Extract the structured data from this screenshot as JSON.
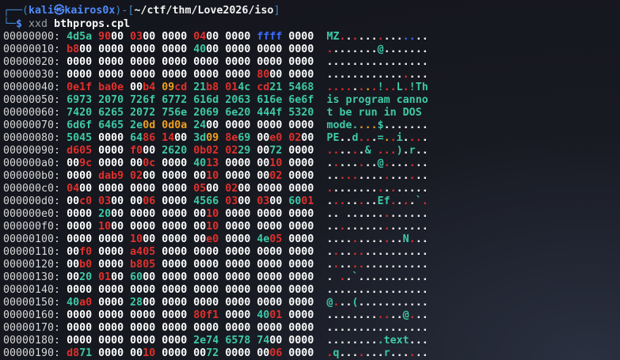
{
  "prompt": {
    "open": "┌──(",
    "user": "kali",
    "at": "㉿",
    "host": "kairos0x",
    "mid": ")-[",
    "path": "~/ctf/thm/Love2026/iso",
    "close": "]",
    "corner": "└─",
    "dollar": "$",
    "command": "xxd",
    "argument": "bthprops.cpl"
  },
  "rows": [
    {
      "offset": "00000000:",
      "hex": [
        "4d5a",
        "9000",
        "0300",
        "0000",
        "0400",
        "0000",
        "ffff",
        "0000"
      ],
      "ascii": "MZ.............."
    },
    {
      "offset": "00000010:",
      "hex": [
        "b800",
        "0000",
        "0000",
        "0000",
        "4000",
        "0000",
        "0000",
        "0000"
      ],
      "ascii": "........@......."
    },
    {
      "offset": "00000020:",
      "hex": [
        "0000",
        "0000",
        "0000",
        "0000",
        "0000",
        "0000",
        "0000",
        "0000"
      ],
      "ascii": "................"
    },
    {
      "offset": "00000030:",
      "hex": [
        "0000",
        "0000",
        "0000",
        "0000",
        "0000",
        "0000",
        "8000",
        "0000"
      ],
      "ascii": "................"
    },
    {
      "offset": "00000040:",
      "hex": [
        "0e1f",
        "ba0e",
        "00b4",
        "09cd",
        "21b8",
        "014c",
        "cd21",
        "5468"
      ],
      "ascii": "........!..L.!Th"
    },
    {
      "offset": "00000050:",
      "hex": [
        "6973",
        "2070",
        "726f",
        "6772",
        "616d",
        "2063",
        "616e",
        "6e6f"
      ],
      "ascii": "is program canno"
    },
    {
      "offset": "00000060:",
      "hex": [
        "7420",
        "6265",
        "2072",
        "756e",
        "2069",
        "6e20",
        "444f",
        "5320"
      ],
      "ascii": "t be run in DOS "
    },
    {
      "offset": "00000070:",
      "hex": [
        "6d6f",
        "6465",
        "2e0d",
        "0d0a",
        "2400",
        "0000",
        "0000",
        "0000"
      ],
      "ascii": "mode....$......."
    },
    {
      "offset": "00000080:",
      "hex": [
        "5045",
        "0000",
        "6486",
        "1400",
        "3d09",
        "8e69",
        "00e0",
        "0200"
      ],
      "ascii": "PE..d...=..i...."
    },
    {
      "offset": "00000090:",
      "hex": [
        "d605",
        "0000",
        "f000",
        "2620",
        "0b02",
        "0229",
        "0072",
        "0000"
      ],
      "ascii": "......& ...).r.."
    },
    {
      "offset": "000000a0:",
      "hex": [
        "009c",
        "0000",
        "000c",
        "0000",
        "4013",
        "0000",
        "0010",
        "0000"
      ],
      "ascii": "........@......."
    },
    {
      "offset": "000000b0:",
      "hex": [
        "0000",
        "dab9",
        "0200",
        "0000",
        "0010",
        "0000",
        "0002",
        "0000"
      ],
      "ascii": "................"
    },
    {
      "offset": "000000c0:",
      "hex": [
        "0400",
        "0000",
        "0000",
        "0000",
        "0500",
        "0200",
        "0000",
        "0000"
      ],
      "ascii": "................"
    },
    {
      "offset": "000000d0:",
      "hex": [
        "00c0",
        "0300",
        "0006",
        "0000",
        "4566",
        "0300",
        "0300",
        "6001"
      ],
      "ascii": "........Ef....`."
    },
    {
      "offset": "000000e0:",
      "hex": [
        "0000",
        "2000",
        "0000",
        "0000",
        "0010",
        "0000",
        "0000",
        "0000"
      ],
      "ascii": ".. ............."
    },
    {
      "offset": "000000f0:",
      "hex": [
        "0000",
        "1000",
        "0000",
        "0000",
        "0010",
        "0000",
        "0000",
        "0000"
      ],
      "ascii": "................"
    },
    {
      "offset": "00000100:",
      "hex": [
        "0000",
        "0000",
        "1000",
        "0000",
        "00e0",
        "0000",
        "4e05",
        "0000"
      ],
      "ascii": "............N..."
    },
    {
      "offset": "00000110:",
      "hex": [
        "00f0",
        "0000",
        "a405",
        "0000",
        "0000",
        "0000",
        "0000",
        "0000"
      ],
      "ascii": "................"
    },
    {
      "offset": "00000120:",
      "hex": [
        "00b0",
        "0000",
        "b805",
        "0000",
        "0000",
        "0000",
        "0000",
        "0000"
      ],
      "ascii": "................"
    },
    {
      "offset": "00000130:",
      "hex": [
        "0020",
        "0100",
        "6000",
        "0000",
        "0000",
        "0000",
        "0000",
        "0000"
      ],
      "ascii": ". ..`..........."
    },
    {
      "offset": "00000140:",
      "hex": [
        "0000",
        "0000",
        "0000",
        "0000",
        "0000",
        "0000",
        "0000",
        "0000"
      ],
      "ascii": "................"
    },
    {
      "offset": "00000150:",
      "hex": [
        "40a0",
        "0000",
        "2800",
        "0000",
        "0000",
        "0000",
        "0000",
        "0000"
      ],
      "ascii": "@...(..........."
    },
    {
      "offset": "00000160:",
      "hex": [
        "0000",
        "0000",
        "0000",
        "0000",
        "80f1",
        "0000",
        "4001",
        "0000"
      ],
      "ascii": "............@..."
    },
    {
      "offset": "00000170:",
      "hex": [
        "0000",
        "0000",
        "0000",
        "0000",
        "0000",
        "0000",
        "0000",
        "0000"
      ],
      "ascii": "................"
    },
    {
      "offset": "00000180:",
      "hex": [
        "0000",
        "0000",
        "0000",
        "0000",
        "2e74",
        "6578",
        "7400",
        "0000"
      ],
      "ascii": ".........text..."
    },
    {
      "offset": "00000190:",
      "hex": [
        "d871",
        "0000",
        "0010",
        "0000",
        "0072",
        "0000",
        "0006",
        "0000"
      ],
      "ascii": ".q.......r......"
    }
  ]
}
